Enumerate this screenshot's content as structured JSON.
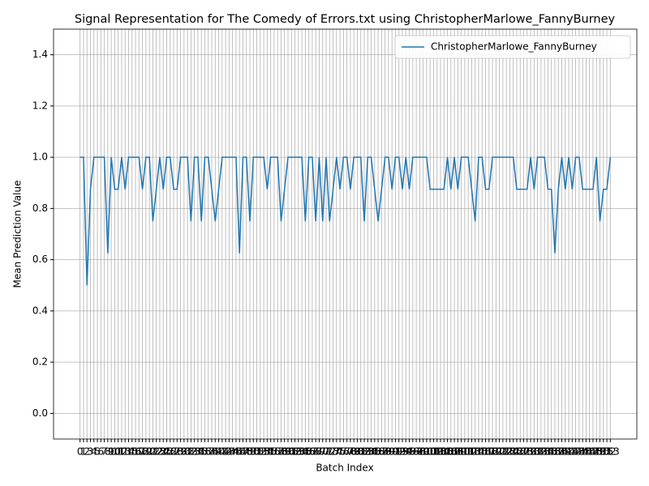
{
  "chart_data": {
    "type": "line",
    "title": "Signal Representation for The Comedy of Errors.txt using ChristopherMarlowe_FannyBurney",
    "x_label": "Batch Index",
    "y_label": "Mean Prediction Value",
    "categories": [
      "0",
      "1",
      "2",
      "3",
      "4",
      "5",
      "6",
      "7",
      "8",
      "9",
      "10",
      "11",
      "12",
      "13",
      "14",
      "15",
      "16",
      "17",
      "18",
      "19",
      "20",
      "21",
      "22",
      "23",
      "24",
      "25",
      "26",
      "27",
      "28",
      "29",
      "30",
      "31",
      "32",
      "33",
      "34",
      "35",
      "36",
      "37",
      "38",
      "39",
      "40",
      "41",
      "42",
      "43",
      "44",
      "45",
      "46",
      "47",
      "48",
      "49",
      "50",
      "51",
      "52",
      "53",
      "54",
      "55",
      "56",
      "57",
      "58",
      "59",
      "60",
      "61",
      "62",
      "63",
      "64",
      "65",
      "66",
      "67",
      "68",
      "69",
      "70",
      "71",
      "72",
      "73",
      "74",
      "75",
      "76",
      "77",
      "78",
      "79",
      "80",
      "81",
      "82",
      "83",
      "84",
      "85",
      "86",
      "87",
      "88",
      "89",
      "90",
      "91",
      "92",
      "93",
      "94",
      "95",
      "96",
      "97",
      "98",
      "99",
      "100",
      "101",
      "102",
      "103",
      "104",
      "105",
      "106",
      "107",
      "108",
      "109",
      "110",
      "111",
      "112",
      "113",
      "114",
      "115",
      "116",
      "117",
      "118",
      "119",
      "120",
      "121",
      "122",
      "123",
      "124",
      "125",
      "126",
      "127",
      "128",
      "129",
      "130",
      "131",
      "132",
      "133",
      "134",
      "135",
      "136",
      "137",
      "138",
      "139",
      "140",
      "141",
      "142",
      "143",
      "144",
      "145",
      "146",
      "147",
      "148",
      "149",
      "150",
      "151",
      "152",
      "153"
    ],
    "series": [
      {
        "name": "ChristopherMarlowe_FannyBurney",
        "color": "#1f77b4",
        "values": [
          1,
          1,
          0.5,
          0.875,
          1,
          1,
          1,
          1,
          0.625,
          1,
          0.875,
          0.875,
          1,
          0.875,
          1,
          1,
          1,
          1,
          0.875,
          1,
          1,
          0.75,
          0.875,
          1,
          0.875,
          1,
          1,
          0.875,
          0.875,
          1,
          1,
          1,
          0.75,
          1,
          1,
          0.75,
          1,
          1,
          0.875,
          0.75,
          0.875,
          1,
          1,
          1,
          1,
          1,
          0.625,
          1,
          1,
          0.75,
          1,
          1,
          1,
          1,
          0.875,
          1,
          1,
          1,
          0.75,
          0.875,
          1,
          1,
          1,
          1,
          1,
          0.75,
          1,
          1,
          0.75,
          1,
          0.75,
          1,
          0.75,
          0.875,
          1,
          0.875,
          1,
          1,
          0.875,
          1,
          1,
          1,
          0.75,
          1,
          1,
          0.875,
          0.75,
          0.875,
          1,
          1,
          0.875,
          1,
          1,
          0.875,
          1,
          0.875,
          1,
          1,
          1,
          1,
          1,
          0.875,
          0.875,
          0.875,
          0.875,
          0.875,
          1,
          0.875,
          1,
          0.875,
          1,
          1,
          1,
          0.875,
          0.75,
          1,
          1,
          0.875,
          0.875,
          1,
          1,
          1,
          1,
          1,
          1,
          1,
          0.875,
          0.875,
          0.875,
          0.875,
          1,
          0.875,
          1,
          1,
          1,
          0.875,
          0.875,
          0.625,
          0.875,
          1,
          0.875,
          1,
          0.875,
          1,
          1,
          0.875,
          0.875,
          0.875,
          0.875,
          1,
          0.75,
          0.875,
          0.875,
          1
        ]
      }
    ],
    "ylim": [
      -0.1,
      1.5
    ],
    "yticks": [
      {
        "value": 0,
        "label": "0.0"
      },
      0.2,
      0.4,
      0.6,
      0.8,
      {
        "value": 1,
        "label": "1.0"
      },
      1.2,
      1.4
    ],
    "grid": true,
    "legend": "upper right"
  }
}
